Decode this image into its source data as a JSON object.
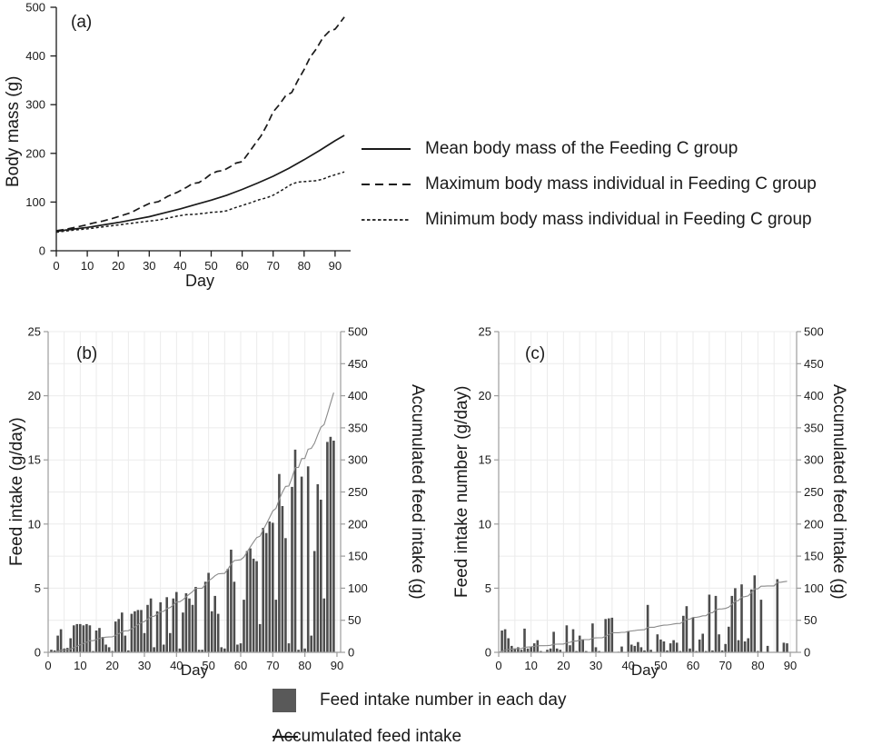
{
  "bottom_legend": {
    "bar_label": "Feed intake number in each day",
    "line_label": "Accumulated feed intake"
  },
  "colors": {
    "line_dark": "#1a1a1a",
    "bar": "#4d4d4d",
    "legend_square": "#595959",
    "accum_line": "#8a8a8a",
    "grid": "#ebebeb",
    "spine": "#9c9c9c"
  },
  "chart_data": [
    {
      "id": "a",
      "type": "line",
      "title": "(a)",
      "xlabel": "Day",
      "ylabel": "Body mass (g)",
      "xlim": [
        0,
        95
      ],
      "ylim": [
        0,
        500
      ],
      "xticks": [
        0,
        10,
        20,
        30,
        40,
        50,
        60,
        70,
        80,
        90
      ],
      "yticks": [
        0,
        100,
        200,
        300,
        400,
        500
      ],
      "grid": false,
      "legend_position": "right",
      "series": [
        {
          "name": "Mean body mass of the Feeding C group",
          "style": "solid",
          "points": [
            [
              0,
              40
            ],
            [
              5,
              44
            ],
            [
              10,
              48
            ],
            [
              15,
              53
            ],
            [
              20,
              58
            ],
            [
              25,
              64
            ],
            [
              30,
              70
            ],
            [
              35,
              78
            ],
            [
              40,
              86
            ],
            [
              45,
              95
            ],
            [
              50,
              104
            ],
            [
              55,
              114
            ],
            [
              60,
              126
            ],
            [
              65,
              139
            ],
            [
              70,
              153
            ],
            [
              75,
              169
            ],
            [
              80,
              187
            ],
            [
              85,
              206
            ],
            [
              90,
              226
            ],
            [
              93,
              237
            ]
          ]
        },
        {
          "name": "Maximum body mass individual in Feeding C group",
          "style": "long-dash",
          "points": [
            [
              0,
              41
            ],
            [
              3,
              44
            ],
            [
              6,
              48
            ],
            [
              9,
              52
            ],
            [
              12,
              57
            ],
            [
              15,
              61
            ],
            [
              18,
              66
            ],
            [
              21,
              72
            ],
            [
              24,
              78
            ],
            [
              27,
              88
            ],
            [
              30,
              97
            ],
            [
              33,
              101
            ],
            [
              36,
              112
            ],
            [
              39,
              120
            ],
            [
              42,
              130
            ],
            [
              44,
              138
            ],
            [
              46,
              140
            ],
            [
              48,
              148
            ],
            [
              50,
              158
            ],
            [
              52,
              163
            ],
            [
              54,
              165
            ],
            [
              56,
              172
            ],
            [
              58,
              180
            ],
            [
              60,
              183
            ],
            [
              62,
              200
            ],
            [
              64,
              218
            ],
            [
              66,
              235
            ],
            [
              68,
              258
            ],
            [
              70,
              285
            ],
            [
              72,
              300
            ],
            [
              74,
              318
            ],
            [
              76,
              325
            ],
            [
              78,
              350
            ],
            [
              80,
              372
            ],
            [
              82,
              398
            ],
            [
              84,
              415
            ],
            [
              86,
              437
            ],
            [
              88,
              450
            ],
            [
              90,
              455
            ],
            [
              91,
              463
            ],
            [
              93,
              480
            ]
          ]
        },
        {
          "name": "Minimum body mass individual in Feeding C group",
          "style": "short-dash",
          "points": [
            [
              0,
              38
            ],
            [
              5,
              42
            ],
            [
              10,
              45
            ],
            [
              15,
              49
            ],
            [
              20,
              53
            ],
            [
              25,
              57
            ],
            [
              30,
              61
            ],
            [
              33,
              63
            ],
            [
              36,
              67
            ],
            [
              39,
              71
            ],
            [
              42,
              74
            ],
            [
              45,
              75
            ],
            [
              48,
              77
            ],
            [
              50,
              79
            ],
            [
              53,
              80
            ],
            [
              55,
              82
            ],
            [
              57,
              87
            ],
            [
              60,
              93
            ],
            [
              63,
              99
            ],
            [
              65,
              104
            ],
            [
              68,
              109
            ],
            [
              70,
              114
            ],
            [
              72,
              121
            ],
            [
              74,
              129
            ],
            [
              76,
              137
            ],
            [
              78,
              141
            ],
            [
              80,
              142
            ],
            [
              82,
              143
            ],
            [
              84,
              144
            ],
            [
              86,
              147
            ],
            [
              88,
              152
            ],
            [
              90,
              156
            ],
            [
              93,
              162
            ]
          ]
        }
      ]
    },
    {
      "id": "b",
      "type": "bar+line",
      "title": "(b)",
      "xlabel": "Day",
      "ylabel": "Feed intake (g/day)",
      "y2label": "Accumulated feed intake (g)",
      "xlim": [
        0,
        91
      ],
      "ylim": [
        0,
        25
      ],
      "y2lim": [
        0,
        500
      ],
      "xticks": [
        0,
        10,
        20,
        30,
        40,
        50,
        60,
        70,
        80,
        90
      ],
      "yticks": [
        0,
        5,
        10,
        15,
        20,
        25
      ],
      "y2ticks": [
        0,
        50,
        100,
        150,
        200,
        250,
        300,
        350,
        400,
        450,
        500
      ],
      "grid": true,
      "bars_start_day": 1,
      "bar_values": [
        0.2,
        0.15,
        1.3,
        1.8,
        0.3,
        0.35,
        1.1,
        2.1,
        2.2,
        2.2,
        2.1,
        2.2,
        2.1,
        0.1,
        1.7,
        1.9,
        1.2,
        0.6,
        0.4,
        0.1,
        2.4,
        2.6,
        3.1,
        1.3,
        0.15,
        3.0,
        3.2,
        3.3,
        3.3,
        1.5,
        3.7,
        4.2,
        0.4,
        3.2,
        3.9,
        0.6,
        4.3,
        1.5,
        4.2,
        4.7,
        0.3,
        3.1,
        4.6,
        4.2,
        3.7,
        5.1,
        0.2,
        0.2,
        5.5,
        6.2,
        3.2,
        4.4,
        3.0,
        0.4,
        0.3,
        6.5,
        8.0,
        5.5,
        0.6,
        0.7,
        4.1,
        7.9,
        8.1,
        7.3,
        7.1,
        2.2,
        9.7,
        9.3,
        10.2,
        10.1,
        4.1,
        13.9,
        11.4,
        8.9,
        0.7,
        12.9,
        15.8,
        0.2,
        13.7,
        0.3,
        14.5,
        1.3,
        7.9,
        13.1,
        11.9,
        4.2,
        16.4,
        16.8,
        16.5
      ],
      "accumulated_note": "cumulative sum of bar_values, final ~405 g at day 89"
    },
    {
      "id": "c",
      "type": "bar+line",
      "title": "(c)",
      "xlabel": "Day",
      "ylabel": "Feed intake number (g/day)",
      "y2label": "Accumulated feed intake (g)",
      "xlim": [
        0,
        91
      ],
      "ylim": [
        0,
        25
      ],
      "y2lim": [
        0,
        500
      ],
      "xticks": [
        0,
        10,
        20,
        30,
        40,
        50,
        60,
        70,
        80,
        90
      ],
      "yticks": [
        0,
        5,
        10,
        15,
        20,
        25
      ],
      "y2ticks": [
        0,
        50,
        100,
        150,
        200,
        250,
        300,
        350,
        400,
        450,
        500
      ],
      "grid": true,
      "bars_start_day": 1,
      "bar_values": [
        1.7,
        1.8,
        1.1,
        0.5,
        0.3,
        0.4,
        0.2,
        1.85,
        0.3,
        0.45,
        0.7,
        0.95,
        0.1,
        0,
        0.2,
        0.3,
        1.6,
        0.3,
        0.2,
        0,
        2.1,
        0.55,
        1.8,
        0.1,
        1.3,
        1.0,
        0.1,
        0,
        2.25,
        0.4,
        0.1,
        0,
        2.6,
        2.65,
        2.7,
        0,
        0.05,
        0.45,
        0,
        1.65,
        0.6,
        0.5,
        0.8,
        0.4,
        0.15,
        3.7,
        0.2,
        0,
        1.4,
        1.0,
        0.85,
        0.15,
        0.7,
        0.95,
        0.75,
        0.1,
        2.85,
        3.6,
        0.3,
        2.7,
        0.1,
        1.0,
        1.45,
        0.1,
        4.5,
        0.15,
        4.4,
        1.4,
        0.15,
        0.65,
        2.0,
        4.4,
        5.0,
        0.95,
        5.3,
        0.85,
        1.1,
        4.9,
        6.0,
        0.1,
        4.1,
        0,
        0.5,
        0,
        0,
        5.7,
        0,
        0.75,
        0.7
      ],
      "accumulated_note": "cumulative sum of bar_values, final ~111 g at day 89"
    }
  ]
}
